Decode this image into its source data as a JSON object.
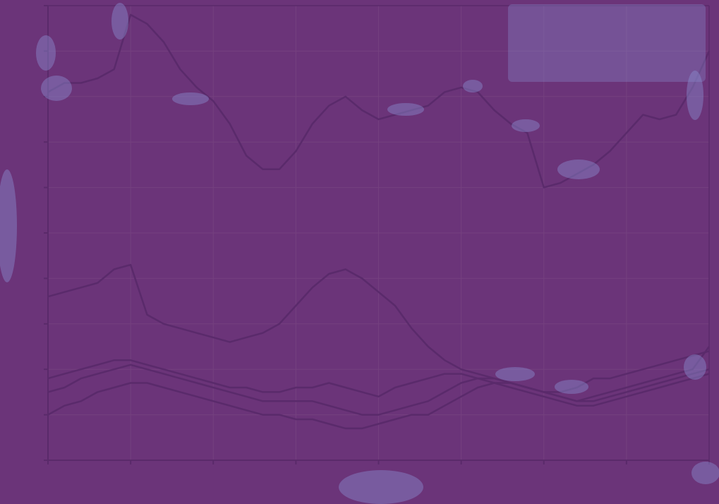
{
  "chart_data": {
    "type": "line",
    "title": "",
    "xlabel": "",
    "ylabel": "",
    "grid": true,
    "legend_placement": "top-right",
    "colors": {
      "background": "#6b3479",
      "axis": "#5a2a6a",
      "grid": "#74407f",
      "line": "#5a2a6b",
      "label": "#8f7db8",
      "blob": "#8a8ccf"
    },
    "xlim": [
      0,
      8
    ],
    "ylim": [
      0,
      10
    ],
    "x": [
      0,
      0.2,
      0.4,
      0.6,
      0.8,
      1.0,
      1.2,
      1.4,
      1.6,
      1.8,
      2.0,
      2.2,
      2.4,
      2.6,
      2.8,
      3.0,
      3.2,
      3.4,
      3.6,
      3.8,
      4.0,
      4.2,
      4.4,
      4.6,
      4.8,
      5.0,
      5.2,
      5.4,
      5.6,
      5.8,
      6.0,
      6.2,
      6.4,
      6.6,
      6.8,
      7.0,
      7.2,
      7.4,
      7.6,
      7.8,
      8.0
    ],
    "series": [
      {
        "values": [
          8.1,
          8.3,
          8.3,
          8.4,
          8.6,
          9.8,
          9.6,
          9.2,
          8.6,
          8.2,
          7.9,
          7.4,
          6.7,
          6.4,
          6.4,
          6.8,
          7.4,
          7.8,
          8.0,
          7.7,
          7.5,
          7.6,
          7.7,
          7.8,
          8.1,
          8.2,
          8.1,
          7.7,
          7.4,
          7.2,
          6.0,
          6.1,
          6.3,
          6.5,
          6.8,
          7.2,
          7.6,
          7.5,
          7.6,
          8.2,
          9.0
        ]
      },
      {
        "values": [
          3.6,
          3.7,
          3.8,
          3.9,
          4.2,
          4.3,
          3.2,
          3.0,
          2.9,
          2.8,
          2.7,
          2.6,
          2.7,
          2.8,
          3.0,
          3.4,
          3.8,
          4.1,
          4.2,
          4.0,
          3.7,
          3.4,
          2.9,
          2.5,
          2.2,
          2.0,
          1.9,
          1.8,
          1.7,
          1.6,
          1.5,
          1.5,
          1.6,
          1.8,
          1.8,
          1.9,
          2.0,
          2.1,
          2.2,
          2.3,
          2.4
        ]
      },
      {
        "values": [
          1.8,
          1.9,
          2.0,
          2.1,
          2.2,
          2.2,
          2.1,
          2.0,
          1.9,
          1.8,
          1.7,
          1.6,
          1.6,
          1.5,
          1.5,
          1.6,
          1.6,
          1.7,
          1.6,
          1.5,
          1.4,
          1.6,
          1.7,
          1.8,
          1.9,
          1.9,
          1.8,
          1.7,
          1.7,
          1.6,
          1.5,
          1.4,
          1.3,
          1.4,
          1.5,
          1.6,
          1.7,
          1.8,
          1.9,
          2.0,
          2.5
        ]
      },
      {
        "values": [
          1.5,
          1.6,
          1.8,
          1.9,
          2.0,
          2.1,
          2.0,
          1.9,
          1.8,
          1.7,
          1.6,
          1.5,
          1.4,
          1.3,
          1.3,
          1.3,
          1.3,
          1.2,
          1.1,
          1.0,
          1.0,
          1.1,
          1.2,
          1.3,
          1.5,
          1.7,
          1.8,
          1.8,
          1.7,
          1.6,
          1.5,
          1.4,
          1.3,
          1.3,
          1.4,
          1.5,
          1.6,
          1.7,
          1.8,
          1.9,
          2.0
        ]
      },
      {
        "values": [
          1.0,
          1.2,
          1.3,
          1.5,
          1.6,
          1.7,
          1.7,
          1.6,
          1.5,
          1.4,
          1.3,
          1.2,
          1.1,
          1.0,
          1.0,
          0.9,
          0.9,
          0.8,
          0.7,
          0.7,
          0.8,
          0.9,
          1.0,
          1.0,
          1.2,
          1.4,
          1.6,
          1.7,
          1.6,
          1.5,
          1.4,
          1.3,
          1.2,
          1.2,
          1.3,
          1.4,
          1.5,
          1.6,
          1.7,
          1.8,
          1.9
        ]
      }
    ]
  }
}
